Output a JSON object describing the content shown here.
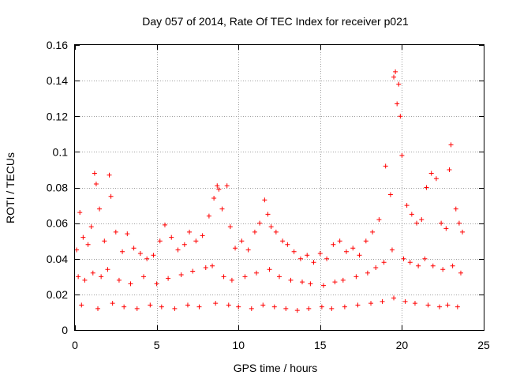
{
  "chart_data": {
    "type": "scatter",
    "title": "Day 057 of 2014, Rate Of TEC Index for receiver p021",
    "xlabel": "GPS time / hours",
    "ylabel": "ROTI / TECUs",
    "xlim": [
      0,
      25
    ],
    "ylim": [
      0,
      0.16
    ],
    "xticks": [
      0,
      5,
      10,
      15,
      20,
      25
    ],
    "xtick_labels": [
      "0",
      "5",
      "10",
      "15",
      "20",
      "25"
    ],
    "yticks": [
      0,
      0.02,
      0.04,
      0.06,
      0.08,
      0.1,
      0.12,
      0.14,
      0.16
    ],
    "ytick_labels": [
      "0",
      "0.02",
      "0.04",
      "0.06",
      "0.08",
      "0.1",
      "0.12",
      "0.14",
      "0.16"
    ],
    "grid": true,
    "marker": "+",
    "color": "#ff0000",
    "series": [
      {
        "name": "ROTI",
        "x": [
          0.1,
          0.3,
          0.5,
          0.8,
          1.0,
          1.2,
          1.3,
          1.5,
          1.8,
          2.1,
          2.2,
          2.5,
          2.9,
          3.2,
          3.6,
          4.0,
          4.4,
          4.8,
          5.2,
          5.5,
          5.9,
          6.3,
          6.7,
          7.0,
          7.4,
          7.8,
          8.2,
          8.5,
          8.7,
          8.8,
          9.0,
          9.3,
          9.5,
          9.8,
          10.2,
          10.6,
          11.0,
          11.3,
          11.6,
          11.8,
          12.0,
          12.3,
          12.7,
          13.0,
          13.4,
          13.8,
          14.2,
          14.6,
          15.0,
          15.4,
          15.8,
          16.2,
          16.6,
          17.0,
          17.4,
          17.8,
          18.2,
          18.6,
          19.0,
          19.3,
          19.5,
          19.6,
          19.7,
          19.8,
          19.9,
          20.0,
          20.3,
          20.6,
          20.9,
          21.2,
          21.5,
          21.8,
          22.1,
          22.4,
          22.7,
          22.9,
          23.0,
          23.3,
          23.5,
          23.7,
          0.2,
          0.6,
          1.1,
          1.6,
          2.0,
          2.7,
          3.4,
          4.2,
          5.0,
          5.7,
          6.5,
          7.2,
          8.0,
          8.4,
          9.1,
          9.6,
          10.4,
          11.1,
          11.9,
          12.5,
          13.2,
          13.9,
          14.4,
          15.2,
          15.9,
          16.4,
          17.2,
          17.9,
          18.4,
          18.9,
          19.4,
          20.1,
          20.5,
          21.0,
          21.4,
          21.9,
          22.5,
          23.1,
          23.6,
          0.4,
          1.4,
          2.3,
          3.0,
          3.8,
          4.6,
          5.3,
          6.1,
          6.9,
          7.6,
          8.6,
          9.4,
          10.0,
          10.8,
          11.5,
          12.2,
          12.9,
          13.6,
          14.3,
          15.1,
          15.7,
          16.5,
          17.3,
          18.1,
          18.8,
          19.5,
          20.2,
          20.8,
          21.6,
          22.3,
          22.8,
          23.4
        ],
        "y": [
          0.045,
          0.066,
          0.052,
          0.048,
          0.058,
          0.088,
          0.082,
          0.068,
          0.05,
          0.087,
          0.075,
          0.055,
          0.044,
          0.054,
          0.046,
          0.043,
          0.04,
          0.042,
          0.05,
          0.059,
          0.052,
          0.045,
          0.048,
          0.055,
          0.05,
          0.053,
          0.064,
          0.074,
          0.081,
          0.079,
          0.068,
          0.081,
          0.058,
          0.046,
          0.05,
          0.045,
          0.055,
          0.06,
          0.073,
          0.065,
          0.058,
          0.055,
          0.05,
          0.048,
          0.044,
          0.04,
          0.042,
          0.038,
          0.043,
          0.04,
          0.048,
          0.05,
          0.044,
          0.046,
          0.042,
          0.05,
          0.055,
          0.062,
          0.092,
          0.076,
          0.142,
          0.145,
          0.127,
          0.138,
          0.12,
          0.098,
          0.07,
          0.065,
          0.06,
          0.062,
          0.08,
          0.088,
          0.085,
          0.06,
          0.057,
          0.09,
          0.104,
          0.068,
          0.06,
          0.055,
          0.03,
          0.028,
          0.032,
          0.03,
          0.034,
          0.028,
          0.026,
          0.03,
          0.026,
          0.029,
          0.031,
          0.033,
          0.035,
          0.036,
          0.03,
          0.028,
          0.03,
          0.032,
          0.034,
          0.03,
          0.028,
          0.027,
          0.026,
          0.025,
          0.027,
          0.028,
          0.03,
          0.032,
          0.035,
          0.038,
          0.045,
          0.04,
          0.038,
          0.036,
          0.04,
          0.036,
          0.034,
          0.036,
          0.032,
          0.014,
          0.012,
          0.015,
          0.013,
          0.012,
          0.014,
          0.013,
          0.012,
          0.014,
          0.013,
          0.015,
          0.014,
          0.013,
          0.012,
          0.014,
          0.013,
          0.012,
          0.011,
          0.012,
          0.013,
          0.012,
          0.013,
          0.014,
          0.015,
          0.016,
          0.018,
          0.016,
          0.015,
          0.014,
          0.013,
          0.014,
          0.013
        ]
      }
    ]
  }
}
